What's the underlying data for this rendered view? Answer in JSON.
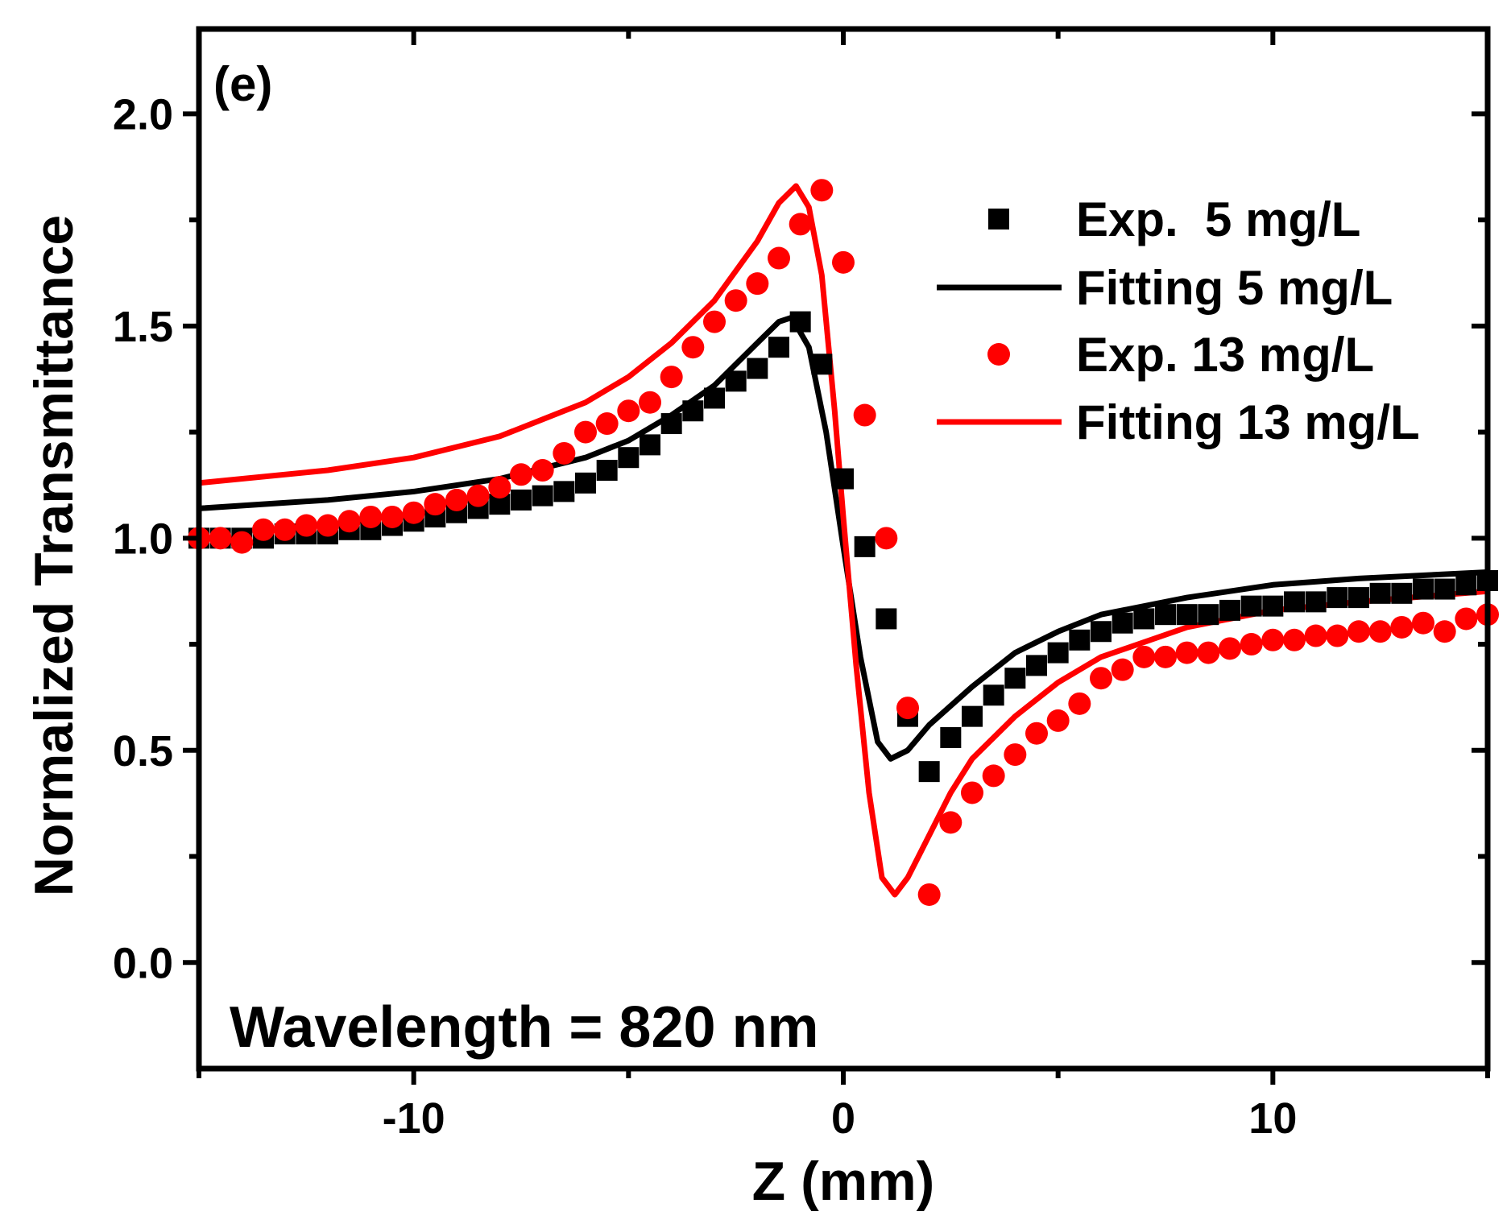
{
  "chart_data": {
    "type": "scatter",
    "panel_label": "(e)",
    "annotation": "Wavelength = 820 nm",
    "xlabel": "Z (mm)",
    "ylabel": "Normalized Transmittance",
    "xlim": [
      -15,
      15
    ],
    "ylim": [
      -0.25,
      2.2
    ],
    "xticks": [
      -10,
      0,
      10
    ],
    "xtick_labels": [
      "-10",
      "0",
      "10"
    ],
    "x_minor_ticks": [
      -15,
      -5,
      5,
      15
    ],
    "yticks": [
      0.0,
      0.5,
      1.0,
      1.5,
      2.0
    ],
    "ytick_labels": [
      "0.0",
      "0.5",
      "1.0",
      "1.5",
      "2.0"
    ],
    "y_minor_ticks": [
      0.25,
      0.75,
      1.25,
      1.75
    ],
    "grid": false,
    "legend_position": "top-right",
    "series": [
      {
        "name": "Exp.  5 mg/L",
        "kind": "scatter",
        "marker": "square",
        "color": "#000000",
        "x": [
          -15,
          -14.5,
          -14,
          -13.5,
          -13,
          -12.5,
          -12,
          -11.5,
          -11,
          -10.5,
          -10,
          -9.5,
          -9,
          -8.5,
          -8,
          -7.5,
          -7,
          -6.5,
          -6,
          -5.5,
          -5,
          -4.5,
          -4,
          -3.5,
          -3,
          -2.5,
          -2,
          -1.5,
          -1,
          -0.5,
          0,
          0.5,
          1,
          1.5,
          2,
          2.5,
          3,
          3.5,
          4,
          4.5,
          5,
          5.5,
          6,
          6.5,
          7,
          7.5,
          8,
          8.5,
          9,
          9.5,
          10,
          10.5,
          11,
          11.5,
          12,
          12.5,
          13,
          13.5,
          14,
          14.5,
          15
        ],
        "y": [
          1.0,
          1.0,
          1.0,
          1.0,
          1.01,
          1.01,
          1.01,
          1.02,
          1.02,
          1.03,
          1.04,
          1.05,
          1.06,
          1.07,
          1.08,
          1.09,
          1.1,
          1.11,
          1.13,
          1.16,
          1.19,
          1.22,
          1.27,
          1.3,
          1.33,
          1.37,
          1.4,
          1.45,
          1.51,
          1.41,
          1.14,
          0.98,
          0.81,
          0.58,
          0.45,
          0.53,
          0.58,
          0.63,
          0.67,
          0.7,
          0.73,
          0.76,
          0.78,
          0.8,
          0.81,
          0.82,
          0.82,
          0.82,
          0.83,
          0.84,
          0.84,
          0.85,
          0.85,
          0.86,
          0.86,
          0.87,
          0.87,
          0.88,
          0.88,
          0.89,
          0.9
        ]
      },
      {
        "name": "Fitting 5 mg/L",
        "kind": "line",
        "color": "#000000",
        "x": [
          -15,
          -12,
          -10,
          -8,
          -6,
          -5,
          -4,
          -3,
          -2,
          -1.5,
          -1.2,
          -0.8,
          -0.4,
          0,
          0.4,
          0.8,
          1.1,
          1.5,
          2,
          3,
          4,
          5,
          6,
          8,
          10,
          12,
          15
        ],
        "y": [
          1.07,
          1.09,
          1.11,
          1.14,
          1.19,
          1.23,
          1.29,
          1.36,
          1.46,
          1.51,
          1.52,
          1.45,
          1.25,
          0.98,
          0.72,
          0.52,
          0.48,
          0.5,
          0.56,
          0.65,
          0.73,
          0.78,
          0.82,
          0.86,
          0.89,
          0.905,
          0.92
        ]
      },
      {
        "name": "Exp. 13 mg/L",
        "kind": "scatter",
        "marker": "circle",
        "color": "#ff0000",
        "x": [
          -15,
          -14.5,
          -14,
          -13.5,
          -13,
          -12.5,
          -12,
          -11.5,
          -11,
          -10.5,
          -10,
          -9.5,
          -9,
          -8.5,
          -8,
          -7.5,
          -7,
          -6.5,
          -6,
          -5.5,
          -5,
          -4.5,
          -4,
          -3.5,
          -3,
          -2.5,
          -2,
          -1.5,
          -1,
          -0.5,
          0,
          0.5,
          1,
          1.5,
          2,
          2.5,
          3,
          3.5,
          4,
          4.5,
          5,
          5.5,
          6,
          6.5,
          7,
          7.5,
          8,
          8.5,
          9,
          9.5,
          10,
          10.5,
          11,
          11.5,
          12,
          12.5,
          13,
          13.5,
          14,
          14.5,
          15
        ],
        "y": [
          1.0,
          1.0,
          0.99,
          1.02,
          1.02,
          1.03,
          1.03,
          1.04,
          1.05,
          1.05,
          1.06,
          1.08,
          1.09,
          1.1,
          1.12,
          1.15,
          1.16,
          1.2,
          1.25,
          1.27,
          1.3,
          1.32,
          1.38,
          1.45,
          1.51,
          1.56,
          1.6,
          1.66,
          1.74,
          1.82,
          1.65,
          1.29,
          1.0,
          0.6,
          0.16,
          0.33,
          0.4,
          0.44,
          0.49,
          0.54,
          0.57,
          0.61,
          0.67,
          0.69,
          0.72,
          0.72,
          0.73,
          0.73,
          0.74,
          0.75,
          0.76,
          0.76,
          0.77,
          0.77,
          0.78,
          0.78,
          0.79,
          0.8,
          0.78,
          0.81,
          0.82
        ]
      },
      {
        "name": "Fitting 13 mg/L",
        "kind": "line",
        "color": "#ff0000",
        "x": [
          -15,
          -12,
          -10,
          -8,
          -6,
          -5,
          -4,
          -3,
          -2,
          -1.5,
          -1.1,
          -0.8,
          -0.5,
          -0.2,
          0,
          0.3,
          0.6,
          0.9,
          1.2,
          1.5,
          2,
          2.5,
          3,
          4,
          5,
          6,
          8,
          10,
          12,
          15
        ],
        "y": [
          1.13,
          1.16,
          1.19,
          1.24,
          1.32,
          1.38,
          1.46,
          1.56,
          1.7,
          1.79,
          1.83,
          1.78,
          1.62,
          1.3,
          1.05,
          0.7,
          0.4,
          0.2,
          0.16,
          0.2,
          0.3,
          0.4,
          0.48,
          0.58,
          0.66,
          0.72,
          0.79,
          0.83,
          0.85,
          0.875
        ]
      }
    ]
  }
}
